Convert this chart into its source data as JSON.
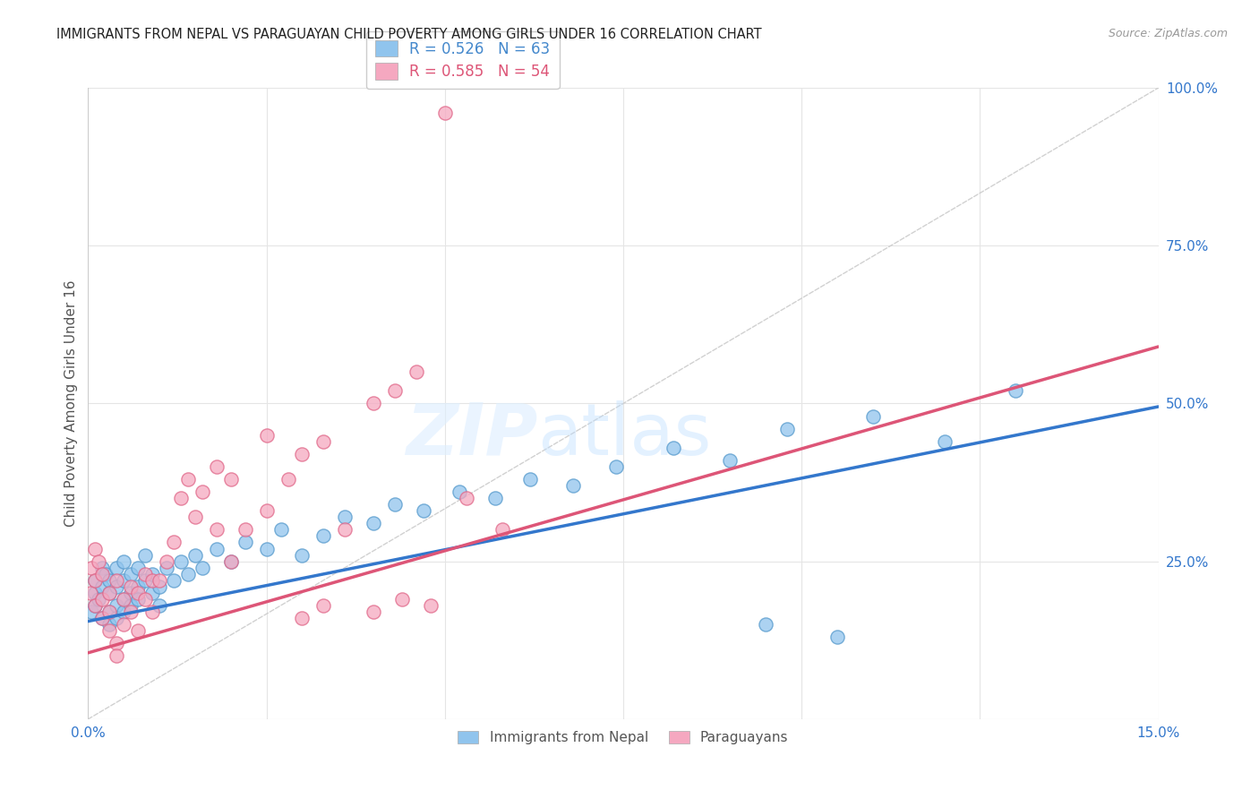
{
  "title": "IMMIGRANTS FROM NEPAL VS PARAGUAYAN CHILD POVERTY AMONG GIRLS UNDER 16 CORRELATION CHART",
  "source": "Source: ZipAtlas.com",
  "ylabel": "Child Poverty Among Girls Under 16",
  "xlim": [
    0.0,
    0.15
  ],
  "ylim": [
    0.0,
    1.0
  ],
  "xtick_labels": [
    "0.0%",
    "15.0%"
  ],
  "ytick_labels": [
    "100.0%",
    "75.0%",
    "50.0%",
    "25.0%"
  ],
  "ytick_vals": [
    1.0,
    0.75,
    0.5,
    0.25
  ],
  "nepal_color": "#90C4ED",
  "paraguay_color": "#F5A8C0",
  "nepal_edge_color": "#5599CC",
  "paraguay_edge_color": "#E06688",
  "nepal_line_color": "#3377CC",
  "paraguay_line_color": "#DD5577",
  "diagonal_color": "#CCCCCC",
  "R_nepal": "0.526",
  "N_nepal": "63",
  "R_paraguay": "0.585",
  "N_paraguay": "54",
  "nepal_scatter_x": [
    0.0005,
    0.001,
    0.001,
    0.001,
    0.0015,
    0.002,
    0.002,
    0.002,
    0.0025,
    0.003,
    0.003,
    0.003,
    0.003,
    0.004,
    0.004,
    0.004,
    0.004,
    0.005,
    0.005,
    0.005,
    0.005,
    0.006,
    0.006,
    0.006,
    0.007,
    0.007,
    0.007,
    0.008,
    0.008,
    0.009,
    0.009,
    0.01,
    0.01,
    0.011,
    0.012,
    0.013,
    0.014,
    0.015,
    0.016,
    0.018,
    0.02,
    0.022,
    0.025,
    0.027,
    0.03,
    0.033,
    0.036,
    0.04,
    0.043,
    0.047,
    0.052,
    0.057,
    0.062,
    0.068,
    0.074,
    0.082,
    0.09,
    0.098,
    0.11,
    0.12,
    0.095,
    0.105,
    0.13
  ],
  "nepal_scatter_y": [
    0.17,
    0.2,
    0.22,
    0.18,
    0.19,
    0.21,
    0.24,
    0.16,
    0.23,
    0.17,
    0.2,
    0.15,
    0.22,
    0.18,
    0.21,
    0.24,
    0.16,
    0.19,
    0.22,
    0.25,
    0.17,
    0.2,
    0.23,
    0.18,
    0.21,
    0.24,
    0.19,
    0.22,
    0.26,
    0.2,
    0.23,
    0.21,
    0.18,
    0.24,
    0.22,
    0.25,
    0.23,
    0.26,
    0.24,
    0.27,
    0.25,
    0.28,
    0.27,
    0.3,
    0.26,
    0.29,
    0.32,
    0.31,
    0.34,
    0.33,
    0.36,
    0.35,
    0.38,
    0.37,
    0.4,
    0.43,
    0.41,
    0.46,
    0.48,
    0.44,
    0.15,
    0.13,
    0.52
  ],
  "paraguay_scatter_x": [
    0.0003,
    0.0005,
    0.001,
    0.001,
    0.001,
    0.0015,
    0.002,
    0.002,
    0.002,
    0.003,
    0.003,
    0.003,
    0.004,
    0.004,
    0.004,
    0.005,
    0.005,
    0.006,
    0.006,
    0.007,
    0.007,
    0.008,
    0.008,
    0.009,
    0.009,
    0.01,
    0.011,
    0.012,
    0.013,
    0.014,
    0.015,
    0.016,
    0.018,
    0.02,
    0.022,
    0.025,
    0.028,
    0.03,
    0.033,
    0.036,
    0.04,
    0.044,
    0.048,
    0.053,
    0.058,
    0.03,
    0.033,
    0.018,
    0.02,
    0.025,
    0.04,
    0.043,
    0.046,
    0.05
  ],
  "paraguay_scatter_y": [
    0.2,
    0.24,
    0.18,
    0.27,
    0.22,
    0.25,
    0.19,
    0.16,
    0.23,
    0.14,
    0.2,
    0.17,
    0.12,
    0.1,
    0.22,
    0.15,
    0.19,
    0.17,
    0.21,
    0.14,
    0.2,
    0.19,
    0.23,
    0.17,
    0.22,
    0.22,
    0.25,
    0.28,
    0.35,
    0.38,
    0.32,
    0.36,
    0.3,
    0.25,
    0.3,
    0.33,
    0.38,
    0.16,
    0.18,
    0.3,
    0.17,
    0.19,
    0.18,
    0.35,
    0.3,
    0.42,
    0.44,
    0.4,
    0.38,
    0.45,
    0.5,
    0.52,
    0.55,
    0.96
  ],
  "nepal_trend_x": [
    0.0,
    0.15
  ],
  "nepal_trend_y": [
    0.155,
    0.495
  ],
  "paraguay_trend_x": [
    0.0,
    0.15
  ],
  "paraguay_trend_y": [
    0.105,
    0.59
  ],
  "watermark_zip": "ZIP",
  "watermark_atlas": "atlas",
  "background_color": "#FFFFFF",
  "grid_color": "#E5E5E5",
  "legend_color_nepal": "#4488CC",
  "legend_color_paraguay": "#DD5577"
}
